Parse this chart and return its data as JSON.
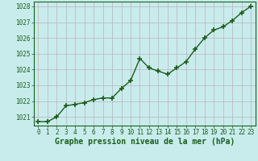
{
  "x": [
    0,
    1,
    2,
    3,
    4,
    5,
    6,
    7,
    8,
    9,
    10,
    11,
    12,
    13,
    14,
    15,
    16,
    17,
    18,
    19,
    20,
    21,
    22,
    23
  ],
  "y": [
    1020.7,
    1020.7,
    1021.0,
    1021.7,
    1021.8,
    1021.9,
    1022.1,
    1022.2,
    1022.2,
    1022.8,
    1023.3,
    1024.7,
    1024.1,
    1023.9,
    1023.7,
    1024.1,
    1024.5,
    1025.3,
    1026.0,
    1026.5,
    1026.7,
    1027.1,
    1027.6,
    1028.0
  ],
  "line_color": "#1a5e1a",
  "marker": "+",
  "marker_size": 4,
  "marker_ew": 1.2,
  "bg_color": "#c8ecec",
  "grid_color": "#c0b8c8",
  "xlim": [
    -0.5,
    23.5
  ],
  "ylim": [
    1020.45,
    1028.3
  ],
  "yticks": [
    1021,
    1022,
    1023,
    1024,
    1025,
    1026,
    1027,
    1028
  ],
  "xticks": [
    0,
    1,
    2,
    3,
    4,
    5,
    6,
    7,
    8,
    9,
    10,
    11,
    12,
    13,
    14,
    15,
    16,
    17,
    18,
    19,
    20,
    21,
    22,
    23
  ],
  "xlabel": "Graphe pression niveau de la mer (hPa)",
  "xlabel_fontsize": 7,
  "tick_fontsize": 5.5,
  "line_width": 1.0
}
